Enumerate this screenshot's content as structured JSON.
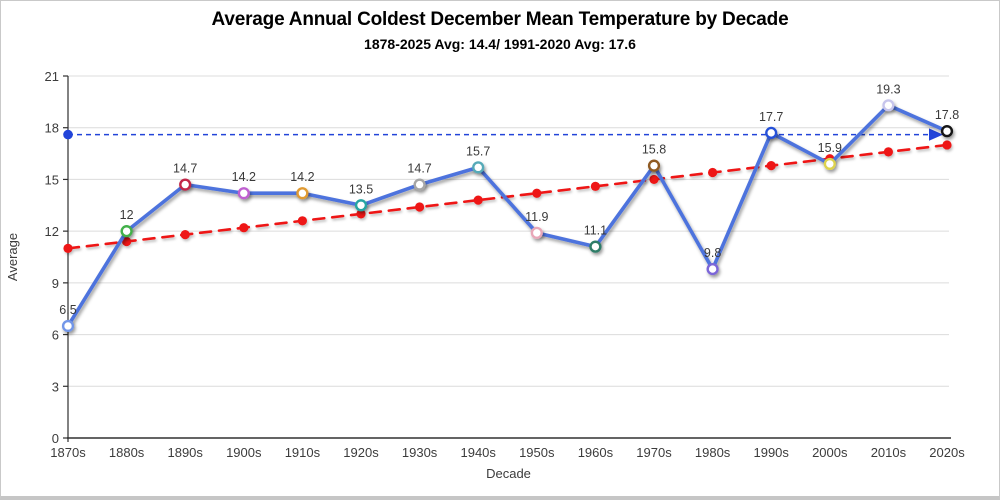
{
  "chart": {
    "title": "Average Annual Coldest December Mean Temperature by Decade",
    "subtitle": "1878-2025 Avg: 14.4/ 1991-2020 Avg: 17.6"
  },
  "chart_data": {
    "type": "line",
    "title": "Average Annual Coldest December Mean Temperature by Decade",
    "subtitle": "1878-2025 Avg: 14.4/ 1991-2020 Avg: 17.6",
    "xlabel": "Decade",
    "ylabel": "Average",
    "ylim": [
      0,
      21
    ],
    "yticks": [
      0,
      3,
      6,
      9,
      12,
      15,
      18,
      21
    ],
    "grid": "horizontal",
    "legend": "none",
    "categories": [
      "1870s",
      "1880s",
      "1890s",
      "1900s",
      "1910s",
      "1920s",
      "1930s",
      "1940s",
      "1950s",
      "1960s",
      "1970s",
      "1980s",
      "1990s",
      "2000s",
      "2010s",
      "2020s"
    ],
    "series": [
      {
        "name": "Decade average temperature",
        "type": "line-with-markers",
        "color": "#4e73dd",
        "values": [
          6.5,
          12,
          14.7,
          14.2,
          14.2,
          13.5,
          14.7,
          15.7,
          11.9,
          11.1,
          15.8,
          9.8,
          17.7,
          15.9,
          19.3,
          17.8
        ],
        "point_labels": [
          "6.5",
          "12",
          "14.7",
          "14.2",
          "14.2",
          "13.5",
          "14.7",
          "15.7",
          "11.9",
          "11.1",
          "15.8",
          "9.8",
          "17.7",
          "15.9",
          "19.3",
          "17.8"
        ],
        "marker_style": "open-circle",
        "marker_colors": [
          "#7296e8",
          "#43b049",
          "#c22547",
          "#bf5fd0",
          "#e09a30",
          "#27a5a2",
          "#a6a6a6",
          "#56aab8",
          "#e8a7b8",
          "#2f7d68",
          "#8f5a22",
          "#7c66d8",
          "#2851d8",
          "#ddd24e",
          "#c7c5ec",
          "#141414"
        ]
      },
      {
        "name": "Linear trend",
        "type": "dashed-trendline-with-dots",
        "color": "#ee1515",
        "start_value": 11.0,
        "end_value": 17.0
      },
      {
        "name": "1991-2020 average reference",
        "type": "dashed-reference-line",
        "color": "#2244d9",
        "value": 17.6,
        "left_end": "filled-dot",
        "right_end": "arrowhead"
      }
    ]
  }
}
